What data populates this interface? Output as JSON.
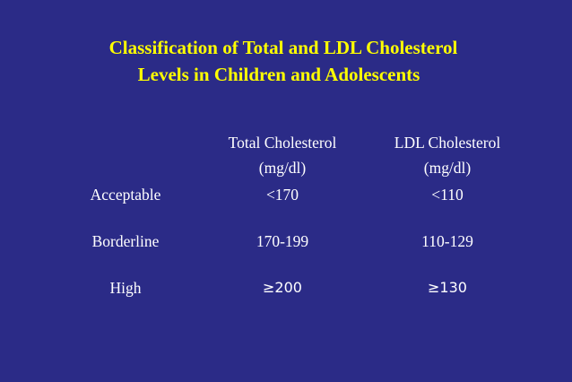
{
  "title": {
    "line1": "Classification of Total and LDL Cholesterol",
    "line2": "Levels in Children and Adolescents"
  },
  "table": {
    "columns": [
      {
        "name": "Total Cholesterol",
        "unit": "(mg/dl)"
      },
      {
        "name": "LDL Cholesterol",
        "unit": "(mg/dl)"
      }
    ],
    "rows": [
      {
        "label": "Acceptable",
        "total": "<170",
        "ldl": "<110"
      },
      {
        "label": "Borderline",
        "total": "170-199",
        "ldl": "110-129"
      },
      {
        "label": "High",
        "total": "≥200",
        "ldl": "≥130"
      }
    ]
  },
  "colors": {
    "background": "#2b2b87",
    "title": "#ffff00",
    "text": "#ffffff"
  }
}
